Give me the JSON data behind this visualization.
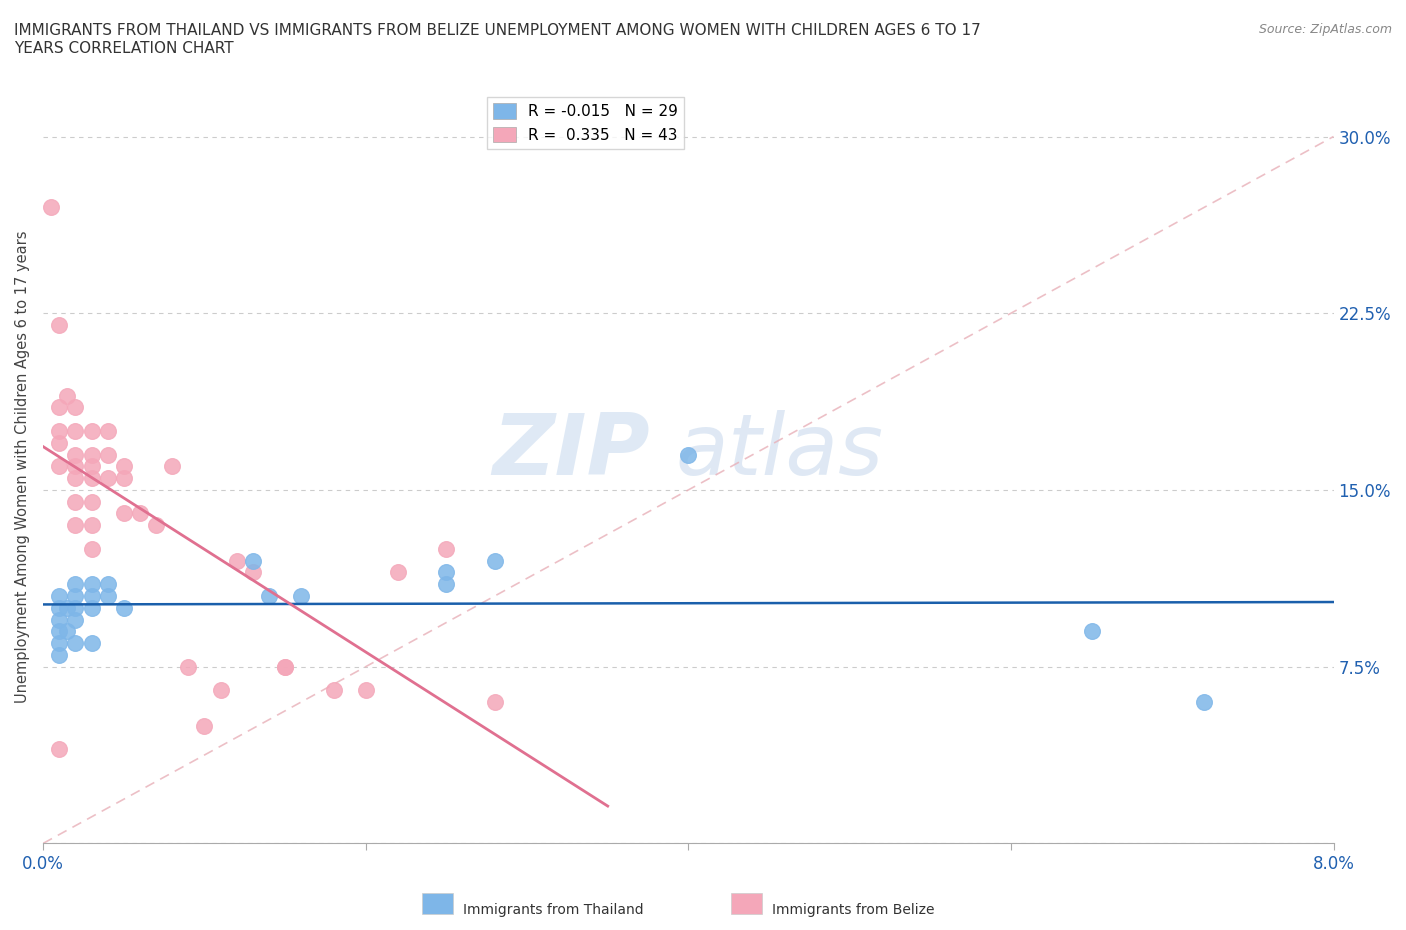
{
  "title": "IMMIGRANTS FROM THAILAND VS IMMIGRANTS FROM BELIZE UNEMPLOYMENT AMONG WOMEN WITH CHILDREN AGES 6 TO 17\nYEARS CORRELATION CHART",
  "source": "Source: ZipAtlas.com",
  "ylabel_label": "Unemployment Among Women with Children Ages 6 to 17 years",
  "xlim": [
    0.0,
    0.08
  ],
  "ylim": [
    0.0,
    0.32
  ],
  "xticks": [
    0.0,
    0.02,
    0.04,
    0.06,
    0.08
  ],
  "xtick_labels": [
    "0.0%",
    "",
    "",
    "",
    "8.0%"
  ],
  "yticks": [
    0.0,
    0.075,
    0.15,
    0.225,
    0.3
  ],
  "ytick_labels": [
    "",
    "7.5%",
    "15.0%",
    "22.5%",
    "30.0%"
  ],
  "thailand_R": -0.015,
  "thailand_N": 29,
  "belize_R": 0.335,
  "belize_N": 43,
  "thailand_color": "#7EB6E8",
  "belize_color": "#F4A7B9",
  "thailand_line_color": "#1A5FAB",
  "belize_line_color": "#E07090",
  "diagonal_color": "#E8B0B8",
  "watermark_zip": "ZIP",
  "watermark_atlas": "atlas",
  "thailand_x": [
    0.001,
    0.001,
    0.001,
    0.001,
    0.001,
    0.001,
    0.0015,
    0.0015,
    0.002,
    0.002,
    0.002,
    0.002,
    0.002,
    0.003,
    0.003,
    0.003,
    0.003,
    0.004,
    0.004,
    0.005,
    0.013,
    0.014,
    0.016,
    0.025,
    0.025,
    0.028,
    0.04,
    0.065,
    0.072
  ],
  "thailand_y": [
    0.105,
    0.1,
    0.095,
    0.09,
    0.085,
    0.08,
    0.1,
    0.09,
    0.11,
    0.105,
    0.1,
    0.095,
    0.085,
    0.11,
    0.105,
    0.1,
    0.085,
    0.11,
    0.105,
    0.1,
    0.12,
    0.105,
    0.105,
    0.115,
    0.11,
    0.12,
    0.165,
    0.09,
    0.06
  ],
  "belize_x": [
    0.0005,
    0.001,
    0.001,
    0.001,
    0.001,
    0.001,
    0.0015,
    0.002,
    0.002,
    0.002,
    0.002,
    0.002,
    0.002,
    0.003,
    0.003,
    0.003,
    0.003,
    0.003,
    0.003,
    0.004,
    0.004,
    0.004,
    0.005,
    0.005,
    0.005,
    0.006,
    0.007,
    0.008,
    0.009,
    0.01,
    0.011,
    0.012,
    0.013,
    0.015,
    0.015,
    0.018,
    0.02,
    0.022,
    0.025,
    0.028,
    0.003,
    0.002,
    0.001
  ],
  "belize_y": [
    0.27,
    0.22,
    0.185,
    0.175,
    0.17,
    0.16,
    0.19,
    0.185,
    0.175,
    0.165,
    0.16,
    0.155,
    0.145,
    0.175,
    0.165,
    0.16,
    0.155,
    0.145,
    0.135,
    0.175,
    0.165,
    0.155,
    0.16,
    0.155,
    0.14,
    0.14,
    0.135,
    0.16,
    0.075,
    0.05,
    0.065,
    0.12,
    0.115,
    0.075,
    0.075,
    0.065,
    0.065,
    0.115,
    0.125,
    0.06,
    0.125,
    0.135,
    0.04
  ]
}
